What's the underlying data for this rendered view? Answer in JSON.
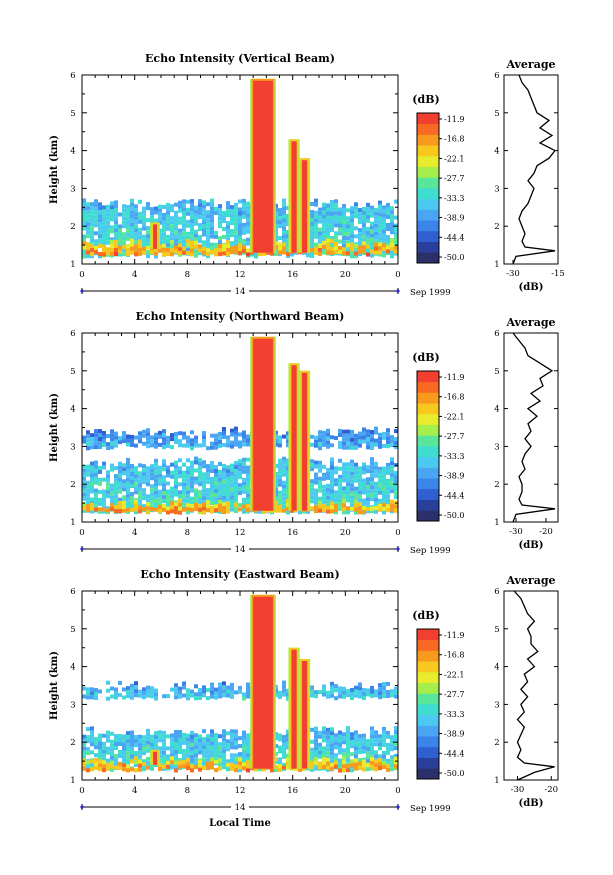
{
  "figure": {
    "xlabel": "Local Time",
    "date_label": "Sep 1999",
    "day_label": "14",
    "units_label": "(dB)",
    "average_title": "Average"
  },
  "colorbar": {
    "ticks": [
      "-11.9",
      "-16.8",
      "-22.1",
      "-27.7",
      "-33.3",
      "-38.9",
      "-44.4",
      "-50.0"
    ],
    "colors": [
      "#2b2f6a",
      "#2a3f9a",
      "#2f5fd0",
      "#3a84ea",
      "#4aa6f2",
      "#4cc9f0",
      "#3fdcd0",
      "#5ae69a",
      "#a6ee4c",
      "#e8ec2c",
      "#f8c81e",
      "#f89a1e",
      "#f86a24",
      "#f24030"
    ]
  },
  "chart_data": [
    {
      "type": "heatmap",
      "title": "Echo Intensity (Vertical Beam)",
      "xlabel": "",
      "ylabel": "Height (km)",
      "x_ticks": [
        "0",
        "4",
        "8",
        "12",
        "16",
        "20",
        "0"
      ],
      "y_ticks": [
        "1",
        "2",
        "3",
        "4",
        "5",
        "6"
      ],
      "xlim": [
        0,
        24
      ],
      "ylim": [
        1,
        6
      ],
      "zlim": [
        -50.0,
        -11.9
      ],
      "echo_layers": [
        {
          "x": [
            0,
            24
          ],
          "y": [
            1.25,
            2.6
          ],
          "level": -36
        },
        {
          "x": [
            0,
            24
          ],
          "y": [
            1.3,
            1.55
          ],
          "level": -22
        }
      ],
      "echo_columns": [
        {
          "x": [
            13.0,
            14.5
          ],
          "y": [
            1.3,
            5.9
          ],
          "level": -11.9
        },
        {
          "x": [
            15.9,
            16.3
          ],
          "y": [
            1.3,
            4.3
          ],
          "level": -14
        },
        {
          "x": [
            16.7,
            17.1
          ],
          "y": [
            1.3,
            3.8
          ],
          "level": -14
        },
        {
          "x": [
            5.4,
            5.7
          ],
          "y": [
            1.4,
            2.1
          ],
          "level": -14
        }
      ],
      "profile": {
        "title": "Average",
        "xlabel": "(dB)",
        "x_ticks": [
          "-30",
          "-15"
        ],
        "xlim": [
          -33,
          -15
        ],
        "heights": [
          1.0,
          1.2,
          1.35,
          1.45,
          1.6,
          1.8,
          2.0,
          2.2,
          2.4,
          2.6,
          2.8,
          3.0,
          3.2,
          3.4,
          3.6,
          3.8,
          4.0,
          4.2,
          4.4,
          4.6,
          4.8,
          5.0,
          5.2,
          5.4,
          5.6,
          5.8,
          6.0
        ],
        "values": [
          -30,
          -29,
          -16,
          -26,
          -27,
          -26,
          -27,
          -28,
          -27,
          -25,
          -24,
          -23,
          -25,
          -23,
          -22,
          -18,
          -16,
          -21,
          -17,
          -21,
          -18,
          -22,
          -23,
          -24,
          -25,
          -27,
          -28
        ]
      }
    },
    {
      "type": "heatmap",
      "title": "Echo Intensity (Northward Beam)",
      "xlabel": "",
      "ylabel": "Height (km)",
      "x_ticks": [
        "0",
        "4",
        "8",
        "12",
        "16",
        "20",
        "0"
      ],
      "y_ticks": [
        "1",
        "2",
        "3",
        "4",
        "5",
        "6"
      ],
      "xlim": [
        0,
        24
      ],
      "ylim": [
        1,
        6
      ],
      "zlim": [
        -50.0,
        -11.9
      ],
      "echo_layers": [
        {
          "x": [
            0,
            24
          ],
          "y": [
            1.3,
            2.6
          ],
          "level": -36
        },
        {
          "x": [
            0,
            24
          ],
          "y": [
            3.0,
            3.4
          ],
          "level": -40
        },
        {
          "x": [
            0,
            24
          ],
          "y": [
            1.3,
            1.5
          ],
          "level": -22
        }
      ],
      "echo_columns": [
        {
          "x": [
            13.0,
            14.5
          ],
          "y": [
            1.3,
            5.9
          ],
          "level": -11.9
        },
        {
          "x": [
            15.9,
            16.3
          ],
          "y": [
            1.3,
            5.2
          ],
          "level": -14
        },
        {
          "x": [
            16.7,
            17.1
          ],
          "y": [
            1.3,
            5.0
          ],
          "level": -14
        }
      ],
      "profile": {
        "title": "Average",
        "xlabel": "(dB)",
        "x_ticks": [
          "-30",
          "-20"
        ],
        "xlim": [
          -34,
          -16
        ],
        "heights": [
          1.0,
          1.2,
          1.35,
          1.45,
          1.6,
          1.8,
          2.0,
          2.2,
          2.4,
          2.6,
          2.8,
          3.0,
          3.2,
          3.4,
          3.6,
          3.8,
          4.0,
          4.2,
          4.4,
          4.6,
          4.8,
          5.0,
          5.2,
          5.4,
          5.6,
          5.8,
          6.0
        ],
        "values": [
          -31,
          -30,
          -17,
          -28,
          -29,
          -28,
          -28,
          -29,
          -27,
          -28,
          -27,
          -25,
          -27,
          -25,
          -26,
          -23,
          -26,
          -22,
          -25,
          -21,
          -22,
          -18,
          -22,
          -26,
          -27,
          -29,
          -31
        ]
      }
    },
    {
      "type": "heatmap",
      "title": "Echo Intensity (Eastward Beam)",
      "xlabel": "Local Time",
      "ylabel": "Height (km)",
      "x_ticks": [
        "0",
        "4",
        "8",
        "12",
        "16",
        "20",
        "0"
      ],
      "y_ticks": [
        "1",
        "2",
        "3",
        "4",
        "5",
        "6"
      ],
      "xlim": [
        0,
        24
      ],
      "ylim": [
        1,
        6
      ],
      "zlim": [
        -50.0,
        -11.9
      ],
      "echo_layers": [
        {
          "x": [
            0,
            24
          ],
          "y": [
            1.3,
            2.3
          ],
          "level": -36
        },
        {
          "x": [
            0,
            24
          ],
          "y": [
            3.2,
            3.5
          ],
          "level": -38
        },
        {
          "x": [
            0,
            24
          ],
          "y": [
            1.3,
            1.5
          ],
          "level": -22
        }
      ],
      "echo_columns": [
        {
          "x": [
            13.0,
            14.5
          ],
          "y": [
            1.3,
            5.9
          ],
          "level": -11.9
        },
        {
          "x": [
            15.9,
            16.3
          ],
          "y": [
            1.3,
            4.5
          ],
          "level": -14
        },
        {
          "x": [
            16.7,
            17.1
          ],
          "y": [
            1.3,
            4.2
          ],
          "level": -14
        },
        {
          "x": [
            5.4,
            5.7
          ],
          "y": [
            1.4,
            1.8
          ],
          "level": -14
        }
      ],
      "profile": {
        "title": "Average",
        "xlabel": "(dB)",
        "x_ticks": [
          "-30",
          "-20"
        ],
        "xlim": [
          -34,
          -18
        ],
        "heights": [
          1.0,
          1.2,
          1.35,
          1.45,
          1.6,
          1.8,
          2.0,
          2.2,
          2.4,
          2.6,
          2.8,
          3.0,
          3.2,
          3.4,
          3.6,
          3.8,
          4.0,
          4.2,
          4.4,
          4.6,
          4.8,
          5.0,
          5.2,
          5.4,
          5.6,
          5.8,
          6.0
        ],
        "values": [
          -30,
          -25,
          -19,
          -28,
          -30,
          -29,
          -30,
          -29,
          -28,
          -30,
          -28,
          -29,
          -27,
          -29,
          -27,
          -28,
          -25,
          -27,
          -24,
          -26,
          -26,
          -27,
          -25,
          -27,
          -28,
          -29,
          -31
        ]
      }
    }
  ]
}
